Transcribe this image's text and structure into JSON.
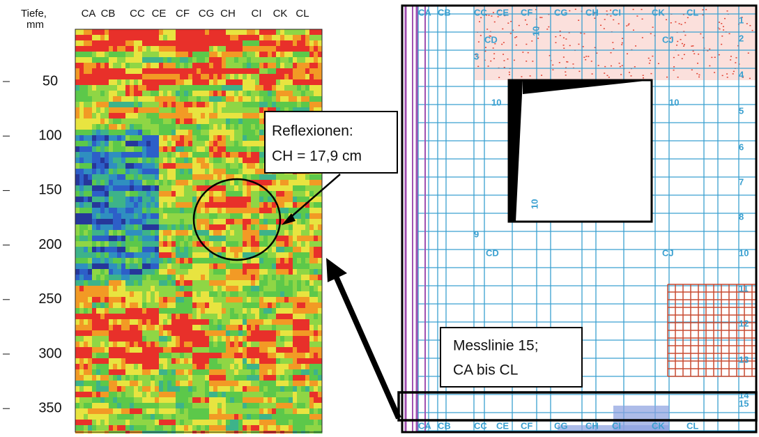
{
  "left": {
    "header": [
      "Tiefe,",
      "mm"
    ],
    "columns": [
      "CA",
      "CB",
      "CC",
      "CE",
      "CF",
      "CG",
      "CH",
      "CI",
      "CK",
      "CL"
    ],
    "depths": [
      "50",
      "100",
      "150",
      "200",
      "250",
      "300",
      "350"
    ]
  },
  "callout": [
    "Reflexionen:",
    "CH = 17,9 cm"
  ],
  "right": {
    "columns": [
      "CA",
      "CB",
      "CC",
      "CE",
      "CF",
      "CG",
      "CH",
      "CI",
      "CK",
      "CL"
    ],
    "rows": [
      "1",
      "2",
      "4",
      "5",
      "6",
      "7",
      "8",
      "10",
      "11",
      "12",
      "13",
      "14",
      "15"
    ],
    "labels": [
      "CD",
      "CJ",
      "3",
      "9",
      "CD",
      "CJ",
      "10",
      "10",
      "10",
      "10"
    ],
    "bottom": [
      "CA",
      "CB",
      "CC",
      "CE",
      "CF",
      "CG",
      "CH",
      "CI",
      "CK",
      "CL"
    ]
  },
  "messlinie": [
    "Messlinie 15;",
    "CA bis CL"
  ]
}
